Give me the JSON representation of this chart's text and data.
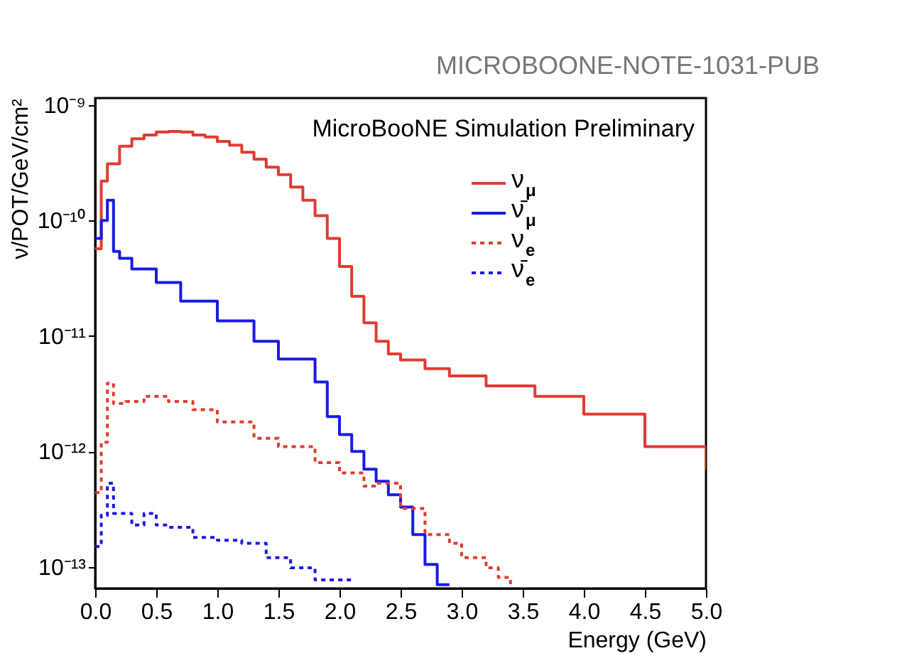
{
  "chart_data": {
    "type": "step",
    "xlabel": "Energy (GeV)",
    "ylabel": "ν/POT/GeV/cm²",
    "log": "y",
    "grid": false,
    "legend": "top right",
    "marker": "none",
    "annotations": [
      "MICROBOONE-NOTE-1031-PUB",
      "MicroBooNE Simulation Preliminary"
    ],
    "xlim": [
      0,
      5
    ],
    "ylim": [
      6.5e-14,
      1.15e-09
    ],
    "xticks": [
      {
        "value": 0,
        "label": "0.0"
      },
      {
        "value": 0.5,
        "label": "0.5"
      },
      {
        "value": 1,
        "label": "1.0"
      },
      {
        "value": 1.5,
        "label": "1.5"
      },
      {
        "value": 2,
        "label": "2.0"
      },
      {
        "value": 2.5,
        "label": "2.5"
      },
      {
        "value": 3,
        "label": "3.0"
      },
      {
        "value": 3.5,
        "label": "3.5"
      },
      {
        "value": 4,
        "label": "4.0"
      },
      {
        "value": 4.5,
        "label": "4.5"
      },
      {
        "value": 5,
        "label": "5.0"
      }
    ],
    "yticks": [
      {
        "value": 1e-13,
        "label": "10⁻¹³"
      },
      {
        "value": 1e-12,
        "label": "10⁻¹²"
      },
      {
        "value": 1e-11,
        "label": "10⁻¹¹"
      },
      {
        "value": 1e-10,
        "label": "10⁻¹⁰"
      },
      {
        "value": 1e-09,
        "label": "10⁻⁹"
      }
    ],
    "series": [
      {
        "name": "ν$_{μ}$",
        "color": "#e03c31",
        "line_style": "solid",
        "x": [
          0,
          0.05,
          0.1,
          0.2,
          0.3,
          0.4,
          0.5,
          0.6,
          0.7,
          0.8,
          0.9,
          1.0,
          1.1,
          1.2,
          1.3,
          1.4,
          1.5,
          1.6,
          1.7,
          1.8,
          1.9,
          2.0,
          2.1,
          2.2,
          2.3,
          2.4,
          2.5,
          2.7,
          2.9,
          3.2,
          3.6,
          4.0,
          4.5,
          5.0
        ],
        "values": [
          5.7e-11,
          2.2e-10,
          3.1e-10,
          4.4e-10,
          5.1e-10,
          5.5e-10,
          5.85e-10,
          5.9e-10,
          5.85e-10,
          5.5e-10,
          5.3e-10,
          4.85e-10,
          4.5e-10,
          3.9e-10,
          3.4e-10,
          2.9e-10,
          2.5e-10,
          1.95e-10,
          1.5e-10,
          1.1e-10,
          7e-11,
          4e-11,
          2.2e-11,
          1.3e-11,
          9e-12,
          7e-12,
          6.2e-12,
          5.2e-12,
          4.5e-12,
          3.7e-12,
          3e-12,
          2.1e-12,
          1.1e-12,
          6.9e-13
        ]
      },
      {
        "name": "ν̄$_{μ}$",
        "color": "#1a1ae6",
        "line_style": "solid",
        "x": [
          0,
          0.05,
          0.1,
          0.15,
          0.2,
          0.3,
          0.5,
          0.7,
          1.0,
          1.3,
          1.5,
          1.8,
          1.9,
          2.0,
          2.1,
          2.2,
          2.3,
          2.4,
          2.5,
          2.6,
          2.7,
          2.8,
          2.9
        ],
        "values": [
          7e-11,
          1e-10,
          1.5e-10,
          5.4e-11,
          4.7e-11,
          3.8e-11,
          2.9e-11,
          2e-11,
          1.35e-11,
          9e-12,
          6.3e-12,
          4e-12,
          2e-12,
          1.4e-12,
          1e-12,
          7e-13,
          5.5e-13,
          4.2e-13,
          3.3e-13,
          1.9e-13,
          1.05e-13,
          7e-14,
          7e-14
        ]
      },
      {
        "name": "ν$_{e}$",
        "color": "#e03c31",
        "line_style": "dotted",
        "x": [
          0,
          0.05,
          0.1,
          0.15,
          0.25,
          0.4,
          0.6,
          0.8,
          1.0,
          1.3,
          1.5,
          1.8,
          2.0,
          2.2,
          2.3,
          2.5,
          2.7,
          2.9,
          3.0,
          3.1,
          3.2,
          3.3,
          3.4
        ],
        "values": [
          4.4e-13,
          1.2e-12,
          3.9e-12,
          2.6e-12,
          2.7e-12,
          3e-12,
          2.7e-12,
          2.3e-12,
          1.8e-12,
          1.3e-12,
          1.1e-12,
          8e-13,
          6.5e-13,
          5e-13,
          5.3e-13,
          3.2e-13,
          1.9e-13,
          1.6e-13,
          1.2e-13,
          1.2e-13,
          9.8e-14,
          8.1e-14,
          7e-14
        ]
      },
      {
        "name": "ν̄$_{e}$",
        "color": "#1a1ae6",
        "line_style": "dotted",
        "x": [
          0,
          0.05,
          0.1,
          0.15,
          0.3,
          0.4,
          0.5,
          0.6,
          0.8,
          1.0,
          1.2,
          1.4,
          1.6,
          1.8,
          2.0,
          2.1
        ],
        "values": [
          1.5e-13,
          2.8e-13,
          5.3e-13,
          2.9e-13,
          2.3e-13,
          2.9e-13,
          2.3e-13,
          2.2e-13,
          1.8e-13,
          1.7e-13,
          1.6e-13,
          1.2e-13,
          9.8e-14,
          7.7e-14,
          7.7e-14,
          8e-14
        ]
      }
    ]
  }
}
